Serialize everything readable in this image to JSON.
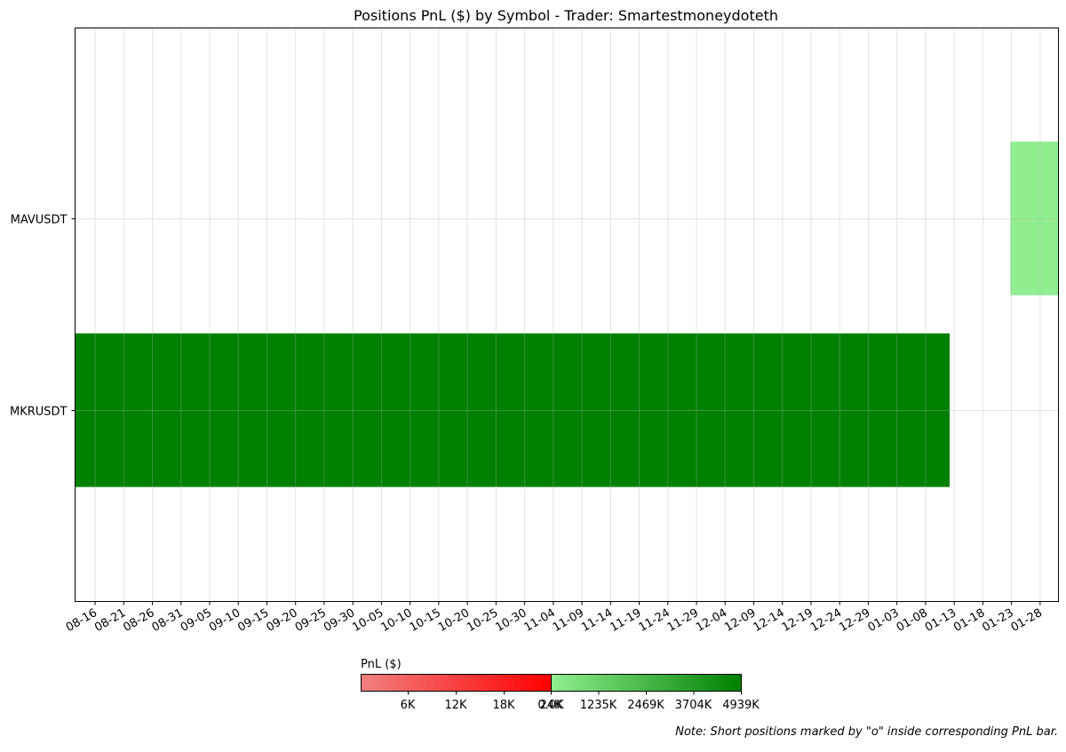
{
  "chart_data": {
    "type": "gantt",
    "title": "Positions PnL ($) by Symbol - Trader: Smartestmoneydoteth",
    "y_categories": [
      "MAVUSDT",
      "MKRUSDT"
    ],
    "x_tick_labels": [
      "08-16",
      "08-21",
      "08-26",
      "08-31",
      "09-05",
      "09-10",
      "09-15",
      "09-20",
      "09-25",
      "09-30",
      "10-05",
      "10-10",
      "10-15",
      "10-20",
      "10-25",
      "10-30",
      "11-04",
      "11-09",
      "11-14",
      "11-19",
      "11-24",
      "11-29",
      "12-04",
      "12-09",
      "12-14",
      "12-19",
      "12-24",
      "12-29",
      "01-03",
      "01-08",
      "01-13",
      "01-18",
      "01-23",
      "01-28"
    ],
    "x_range_days": [
      -3.5,
      168.2
    ],
    "grid": true,
    "positions": [
      {
        "symbol": "MKRUSDT",
        "start_day": -3.5,
        "end_day": 149.2,
        "pnl": 4939000,
        "color": "#008000",
        "short": false
      },
      {
        "symbol": "MAVUSDT",
        "start_day": 159.8,
        "end_day": 168.2,
        "pnl": 0,
        "color": "#90ee90",
        "short": false
      }
    ],
    "colorbar": {
      "label": "PnL ($)",
      "loss_tick_labels": [
        "6K",
        "12K",
        "18K",
        "24K"
      ],
      "loss_gradient": [
        "#f08080",
        "#ff0000"
      ],
      "profit_tick_labels": [
        "0.0K",
        "1235K",
        "2469K",
        "3704K",
        "4939K"
      ],
      "profit_gradient": [
        "#90ee90",
        "#008000"
      ]
    },
    "note": "Note: Short positions marked by \"o\" inside corresponding PnL bar."
  }
}
